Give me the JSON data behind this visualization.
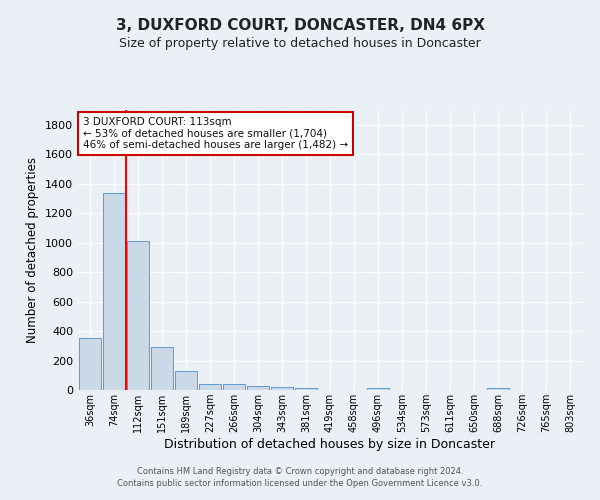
{
  "title": "3, DUXFORD COURT, DONCASTER, DN4 6PX",
  "subtitle": "Size of property relative to detached houses in Doncaster",
  "xlabel": "Distribution of detached houses by size in Doncaster",
  "ylabel": "Number of detached properties",
  "bar_labels": [
    "36sqm",
    "74sqm",
    "112sqm",
    "151sqm",
    "189sqm",
    "227sqm",
    "266sqm",
    "304sqm",
    "343sqm",
    "381sqm",
    "419sqm",
    "458sqm",
    "496sqm",
    "534sqm",
    "573sqm",
    "611sqm",
    "650sqm",
    "688sqm",
    "726sqm",
    "765sqm",
    "803sqm"
  ],
  "bar_values": [
    355,
    1340,
    1010,
    290,
    130,
    42,
    42,
    25,
    18,
    14,
    0,
    0,
    14,
    0,
    0,
    0,
    0,
    14,
    0,
    0,
    0
  ],
  "bar_color": "#c9d9e8",
  "bar_edge_color": "#5b9bd5",
  "annotation_text": "3 DUXFORD COURT: 113sqm\n← 53% of detached houses are smaller (1,704)\n46% of semi-detached houses are larger (1,482) →",
  "annotation_box_color": "#ffffff",
  "annotation_box_edge_color": "#cc0000",
  "bg_color": "#eaf0f6",
  "grid_color": "#ffffff",
  "footer_line1": "Contains HM Land Registry data © Crown copyright and database right 2024.",
  "footer_line2": "Contains public sector information licensed under the Open Government Licence v3.0.",
  "ylim": [
    0,
    1900
  ],
  "yticks": [
    0,
    200,
    400,
    600,
    800,
    1000,
    1200,
    1400,
    1600,
    1800
  ],
  "title_fontsize": 11,
  "subtitle_fontsize": 9,
  "ylabel_fontsize": 8.5,
  "xlabel_fontsize": 9
}
